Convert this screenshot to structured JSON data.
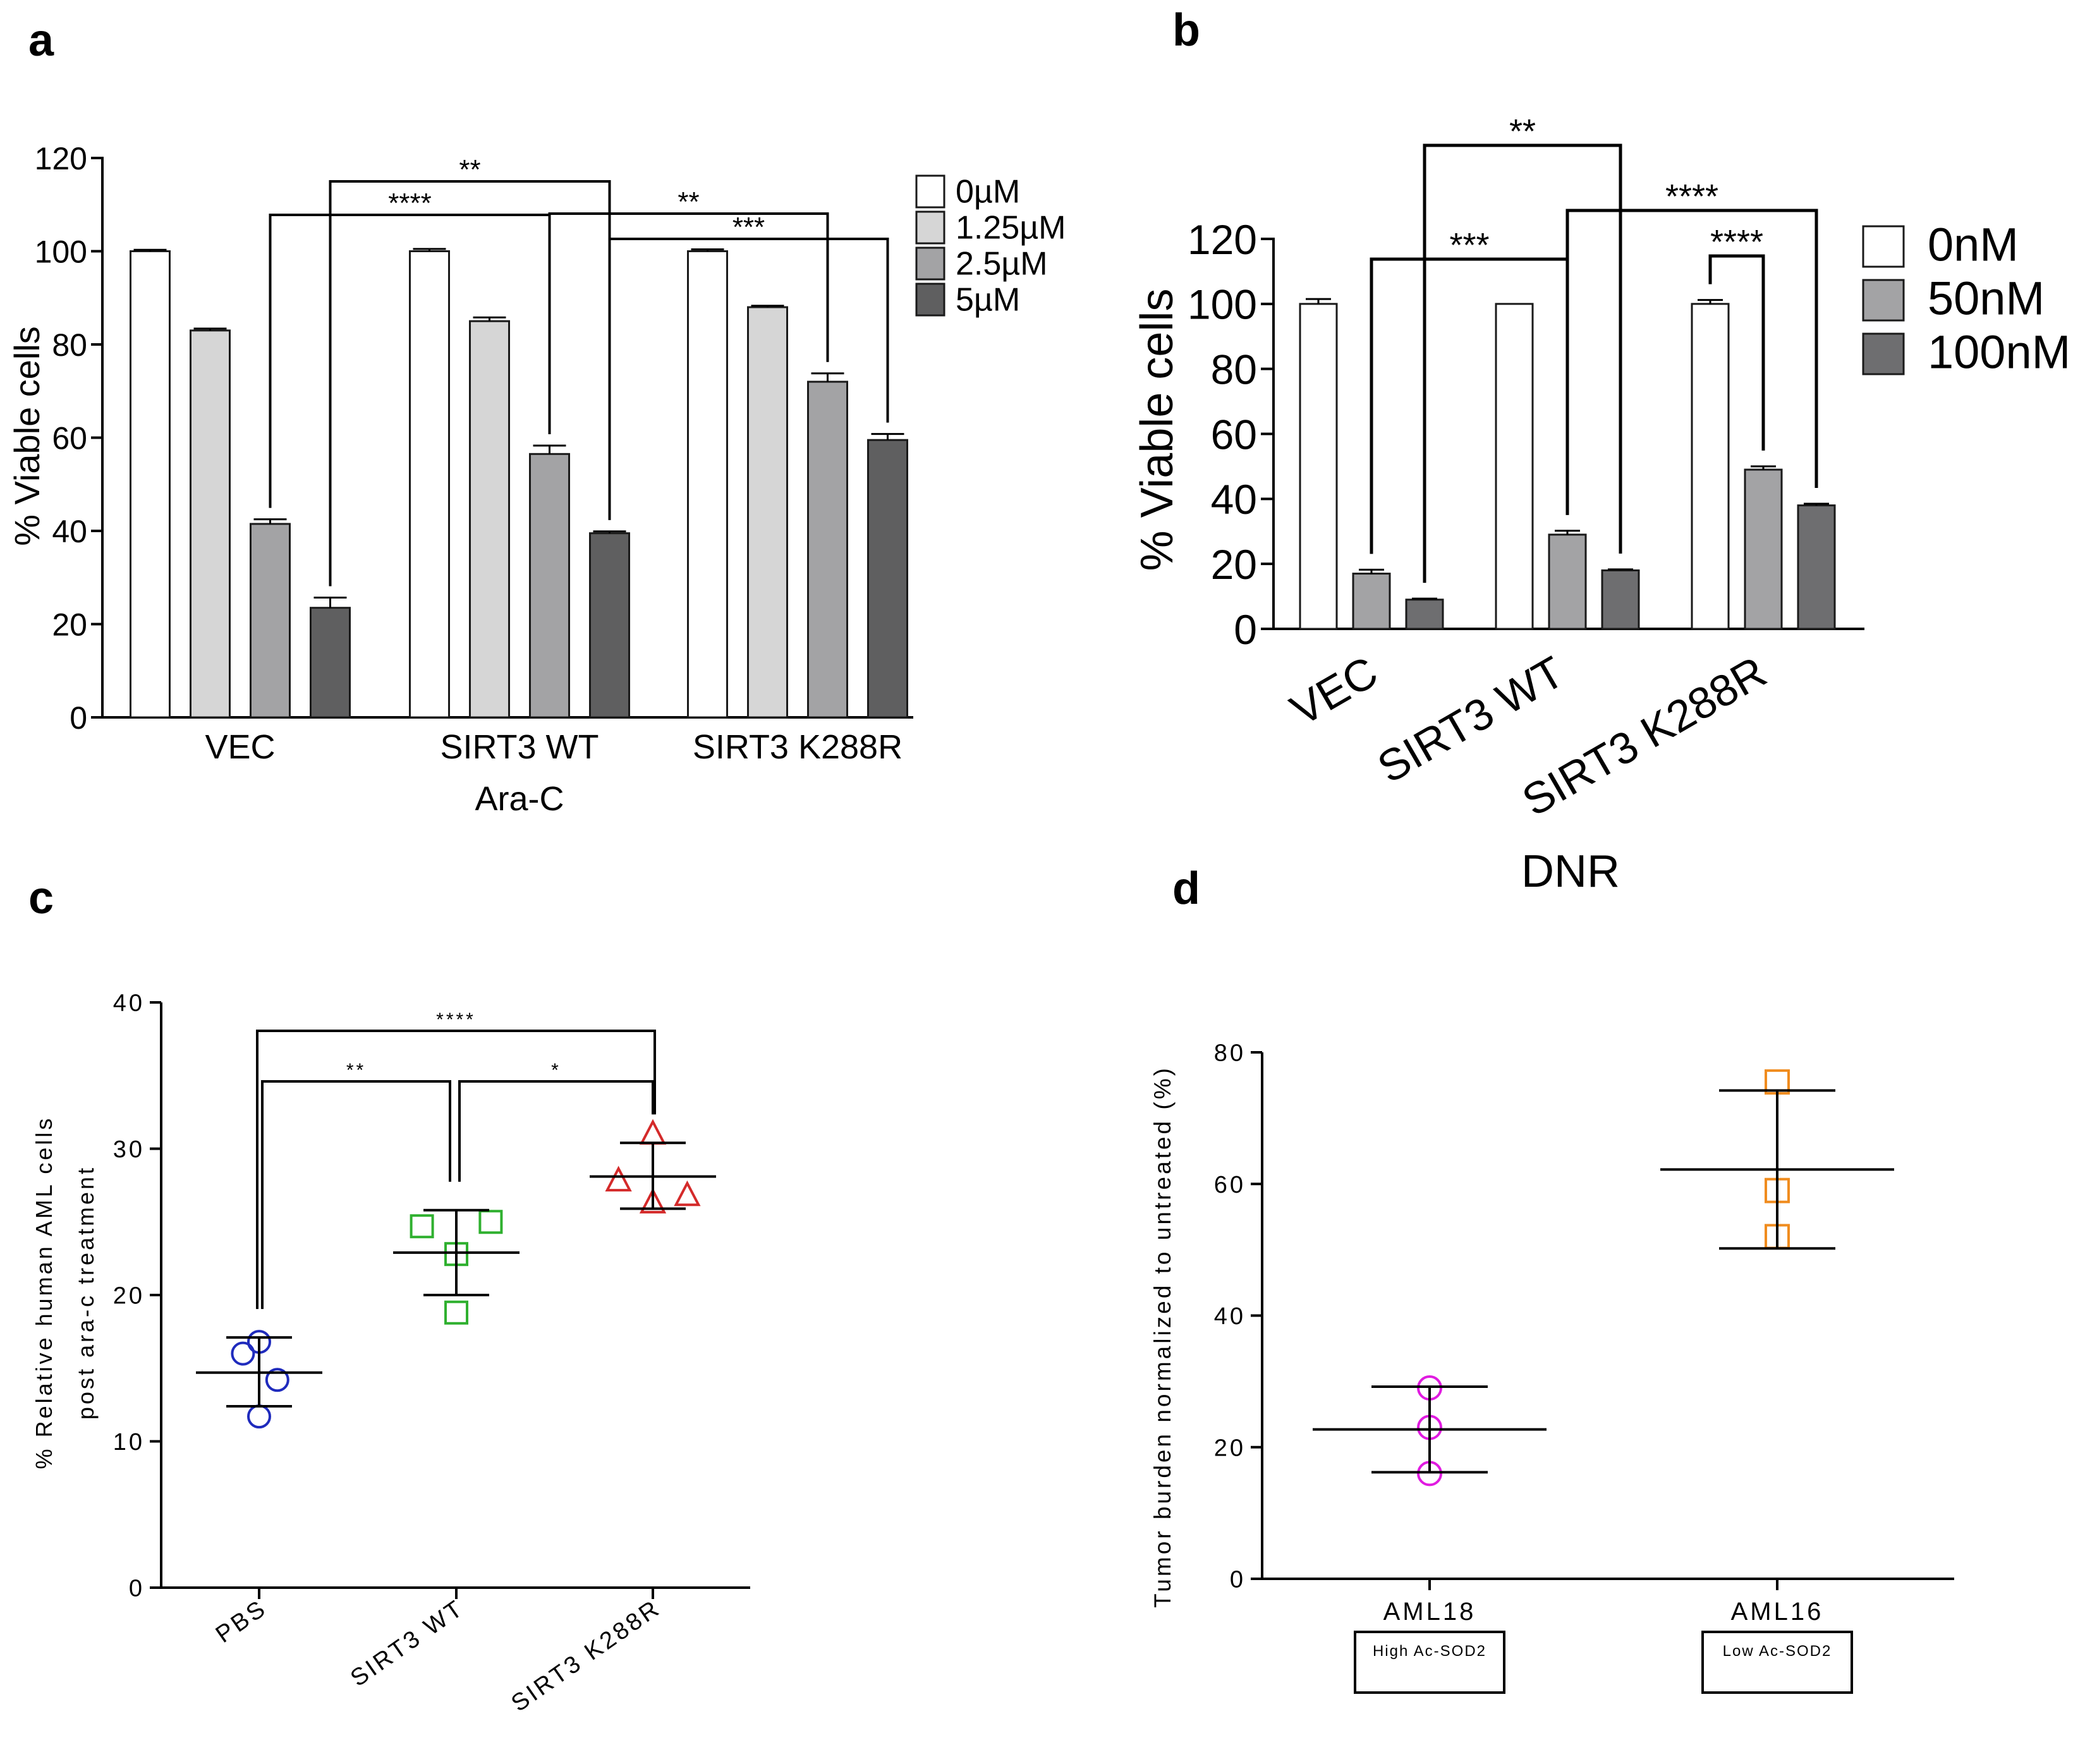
{
  "panels": {
    "a": {
      "letter": "a"
    },
    "b": {
      "letter": "b"
    },
    "c": {
      "letter": "c"
    },
    "d": {
      "letter": "d"
    }
  },
  "chart_data": [
    {
      "id": "a",
      "type": "bar",
      "ylabel": "% Viable cells",
      "xlabel": "Ara-C",
      "ylim": [
        0,
        120
      ],
      "yticks": [
        0,
        20,
        40,
        60,
        80,
        100,
        120
      ],
      "categories": [
        "VEC",
        "SIRT3 WT",
        "SIRT3 K288R"
      ],
      "series": [
        {
          "name": "0µM",
          "color": "#ffffff",
          "values": [
            100,
            100,
            100
          ],
          "errors": [
            0.3,
            0.5,
            0.4
          ]
        },
        {
          "name": "1.25µM",
          "color": "#d6d6d6",
          "values": [
            83,
            85,
            88
          ],
          "errors": [
            0.4,
            0.8,
            0.3
          ]
        },
        {
          "name": "2.5µM",
          "color": "#a3a3a5",
          "values": [
            41.5,
            56.5,
            72
          ],
          "errors": [
            1,
            1.8,
            1.8
          ]
        },
        {
          "name": "5µM",
          "color": "#5f5f60",
          "values": [
            23.5,
            39.5,
            59.5
          ],
          "errors": [
            2.2,
            0.4,
            1.3
          ]
        }
      ],
      "significance": [
        {
          "label": "**",
          "from": [
            0,
            3
          ],
          "to": [
            1,
            3
          ]
        },
        {
          "label": "****",
          "from": [
            0,
            2
          ],
          "to": [
            1,
            2
          ]
        },
        {
          "label": "**",
          "from": [
            1,
            2
          ],
          "to": [
            2,
            2
          ]
        },
        {
          "label": "***",
          "from": [
            1,
            3
          ],
          "to": [
            2,
            3
          ]
        }
      ]
    },
    {
      "id": "b",
      "type": "bar",
      "ylabel": "% Viable cells",
      "xlabel": "DNR",
      "ylim": [
        0,
        120
      ],
      "yticks": [
        0,
        20,
        40,
        60,
        80,
        100,
        120
      ],
      "categories": [
        "VEC",
        "SIRT3 WT",
        "SIRT3 K288R"
      ],
      "series": [
        {
          "name": "0nM",
          "color": "#ffffff",
          "values": [
            100,
            100,
            100
          ],
          "errors": [
            1.5,
            0,
            1.2
          ]
        },
        {
          "name": "50nM",
          "color": "#a3a3a5",
          "values": [
            17,
            29,
            49
          ],
          "errors": [
            1.2,
            1.2,
            1
          ]
        },
        {
          "name": "100nM",
          "color": "#6e6e70",
          "values": [
            9,
            18,
            38
          ],
          "errors": [
            0.3,
            0.3,
            0.5
          ]
        }
      ],
      "significance": [
        {
          "label": "**",
          "from": [
            0,
            2
          ],
          "to": [
            1,
            2
          ]
        },
        {
          "label": "***",
          "from": [
            0,
            1
          ],
          "to": [
            1,
            1
          ]
        },
        {
          "label": "****",
          "from": [
            1,
            1
          ],
          "to": [
            2,
            2
          ]
        },
        {
          "label": "****",
          "from": [
            2,
            0
          ],
          "to": [
            2,
            1
          ]
        }
      ]
    },
    {
      "id": "c",
      "type": "scatter",
      "ylabel": "% Relative human AML cells",
      "ylabel2": "post ara-c treatment",
      "ylim": [
        0,
        40
      ],
      "yticks": [
        0,
        10,
        20,
        30,
        40
      ],
      "categories": [
        "PBS",
        "SIRT3 WT",
        "SIRT3 K288R"
      ],
      "groups": [
        {
          "name": "PBS",
          "marker": "circle",
          "color": "#1f2bbd",
          "points": [
            [
              -0.08,
              16
            ],
            [
              0,
              16.8
            ],
            [
              0.09,
              14.2
            ],
            [
              0,
              11.7
            ]
          ],
          "mean": 14.7,
          "sd_low": 12.4,
          "sd_high": 17.1
        },
        {
          "name": "SIRT3 WT",
          "marker": "square",
          "color": "#2fb02f",
          "points": [
            [
              -0.17,
              24.7
            ],
            [
              0,
              22.8
            ],
            [
              0.17,
              25
            ],
            [
              0,
              18.8
            ]
          ],
          "mean": 22.9,
          "sd_low": 20,
          "sd_high": 25.8
        },
        {
          "name": "SIRT3 K288R",
          "marker": "triangle",
          "color": "#d42a2a",
          "points": [
            [
              0,
              31
            ],
            [
              -0.17,
              27.8
            ],
            [
              0,
              26.3
            ],
            [
              0.17,
              26.8
            ]
          ],
          "mean": 28.1,
          "sd_low": 25.9,
          "sd_high": 30.4
        }
      ],
      "significance": [
        {
          "label": "****",
          "from": 0,
          "to": 2
        },
        {
          "label": "**",
          "from": 0,
          "to": 1
        },
        {
          "label": "*",
          "from": 1,
          "to": 2
        }
      ]
    },
    {
      "id": "d",
      "type": "scatter",
      "ylabel": "Tumor burden normalized to untreated (%)",
      "ylim": [
        0,
        80
      ],
      "yticks": [
        0,
        20,
        40,
        60,
        80
      ],
      "categories": [
        "AML18",
        "AML16"
      ],
      "boxes": [
        "High Ac-SOD2",
        "Low Ac-SOD2"
      ],
      "groups": [
        {
          "name": "AML18",
          "marker": "circle",
          "color": "#e01be0",
          "points": [
            [
              0,
              29
            ],
            [
              0,
              23
            ],
            [
              0,
              16
            ]
          ],
          "mean": 22.7,
          "sd_low": 16.2,
          "sd_high": 29.2
        },
        {
          "name": "AML16",
          "marker": "square",
          "color": "#f08c1e",
          "points": [
            [
              0,
              75.5
            ],
            [
              0,
              59
            ],
            [
              0,
              52
            ]
          ],
          "mean": 62.2,
          "sd_low": 50.2,
          "sd_high": 74.2
        }
      ]
    }
  ]
}
